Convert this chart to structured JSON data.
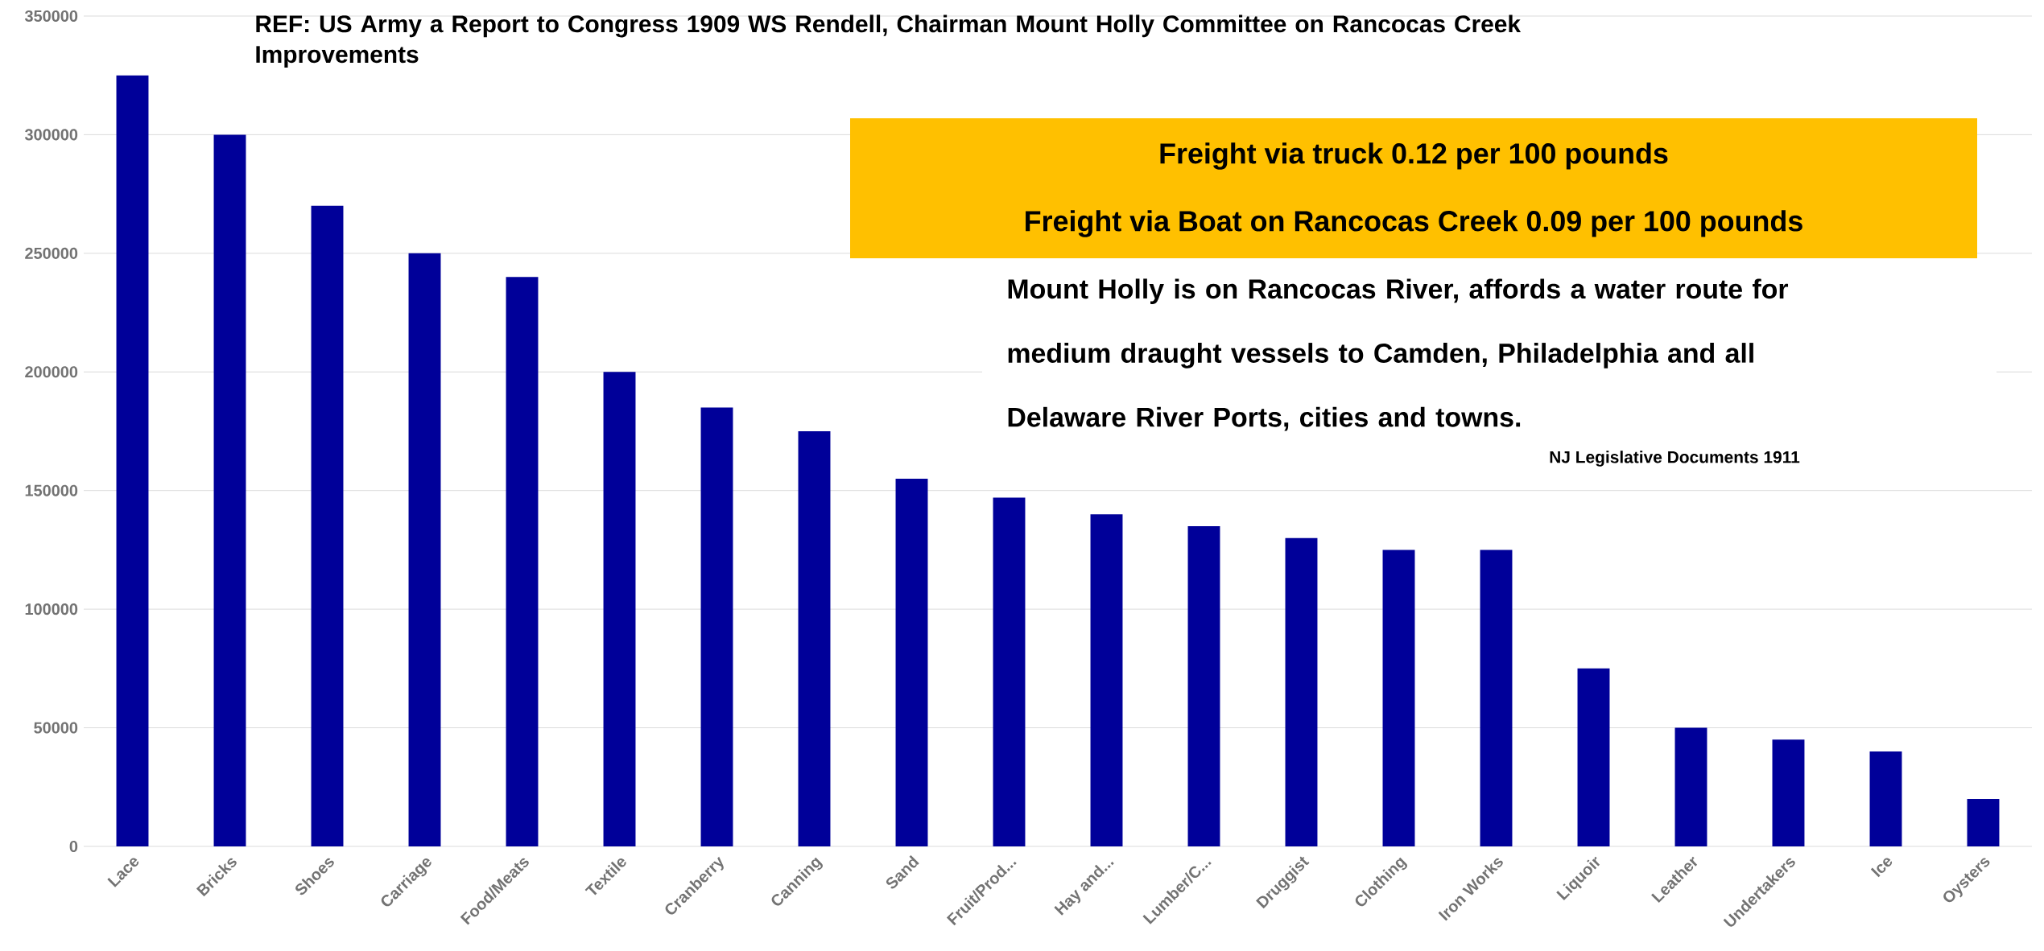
{
  "chart_data": {
    "type": "bar",
    "title": "REF:  US Army a Report to Congress 1909   WS Rendell, Chairman Mount Holly Committee on Rancocas Creek Improvements",
    "categories": [
      "Lace",
      "Bricks",
      "Shoes",
      "Carriage",
      "Food/Meats",
      "Textile",
      "Cranberry",
      "Canning",
      "Sand",
      "Fruit/Prod...",
      "Hay and...",
      "Lumber/C...",
      "Druggist",
      "Clothing",
      "Iron Works",
      "Liquoir",
      "Leather",
      "Undertakers",
      "Ice",
      "Oysters"
    ],
    "values": [
      325000,
      300000,
      270000,
      250000,
      240000,
      200000,
      185000,
      175000,
      155000,
      147000,
      140000,
      135000,
      130000,
      125000,
      125000,
      75000,
      50000,
      45000,
      40000,
      20000
    ],
    "color": "#000099",
    "ylim": [
      0,
      350000
    ],
    "yticks": [
      0,
      50000,
      100000,
      150000,
      200000,
      250000,
      300000,
      350000
    ],
    "grid": "y",
    "annotations": [
      "Freight via truck  0.12 per 100 pounds",
      "Freight via  Boat on Rancocas Creek   0.09 per 100 pounds",
      "Mount Holly is on Rancocas River, affords a water route for medium draught vessels to Camden, Philadelphia and all Delaware River Ports, cities and towns.",
      "NJ Legislative Documents 1911"
    ]
  }
}
